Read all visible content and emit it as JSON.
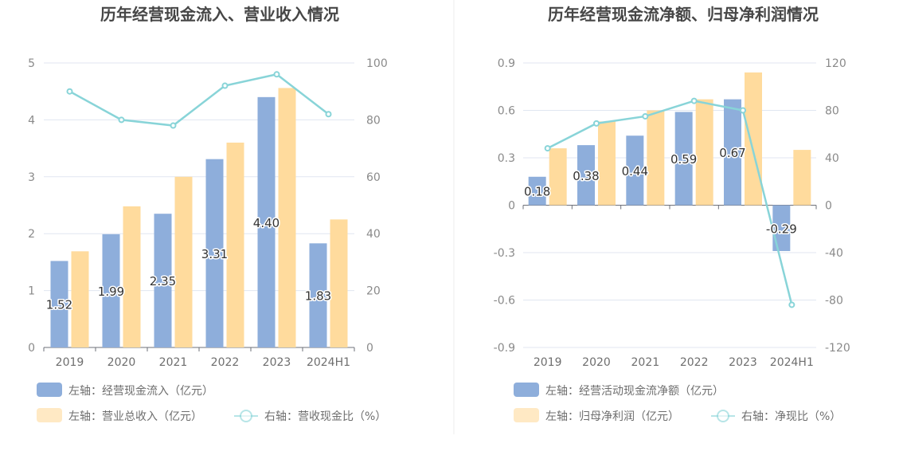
{
  "chart_data": [
    {
      "type": "bar",
      "title": "历年经营现金流入、营业收入情况",
      "categories": [
        "2019",
        "2020",
        "2021",
        "2022",
        "2023",
        "2024H1"
      ],
      "series": [
        {
          "name": "左轴：经营现金流入（亿元）",
          "type": "bar",
          "axis": "left",
          "color": "#8eaedb",
          "values": [
            1.52,
            1.99,
            2.35,
            3.31,
            4.4,
            1.83
          ],
          "labels": [
            "1.52",
            "1.99",
            "2.35",
            "3.31",
            "4.40",
            "1.83"
          ]
        },
        {
          "name": "左轴：营业总收入（亿元）",
          "type": "bar",
          "axis": "left",
          "color": "#ffdb9d",
          "values": [
            1.69,
            2.48,
            3.0,
            3.6,
            4.56,
            2.25
          ]
        },
        {
          "name": "右轴：营收现金比（%）",
          "type": "line",
          "axis": "right",
          "color": "#88d4d8",
          "values": [
            90,
            80,
            78,
            92,
            96,
            82
          ]
        }
      ],
      "left_axis": {
        "min": 0,
        "max": 5,
        "ticks": [
          "0",
          "1",
          "2",
          "3",
          "4",
          "5"
        ]
      },
      "right_axis": {
        "min": 0,
        "max": 100,
        "ticks": [
          "0",
          "20",
          "40",
          "60",
          "80",
          "100"
        ]
      },
      "grid": true,
      "legend_position": "bottom-left"
    },
    {
      "type": "bar",
      "title": "历年经营现金流净额、归母净利润情况",
      "categories": [
        "2019",
        "2020",
        "2021",
        "2022",
        "2023",
        "2024H1"
      ],
      "series": [
        {
          "name": "左轴：经营活动现金流净额（亿元）",
          "type": "bar",
          "axis": "left",
          "color": "#8eaedb",
          "values": [
            0.18,
            0.38,
            0.44,
            0.59,
            0.67,
            -0.29
          ],
          "labels": [
            "0.18",
            "0.38",
            "0.44",
            "0.59",
            "0.67",
            "-0.29"
          ]
        },
        {
          "name": "左轴：归母净利润（亿元）",
          "type": "bar",
          "axis": "left",
          "color": "#ffdb9d",
          "values": [
            0.36,
            0.53,
            0.6,
            0.67,
            0.84,
            0.35
          ]
        },
        {
          "name": "右轴：净现比（%）",
          "type": "line",
          "axis": "right",
          "color": "#88d4d8",
          "values": [
            48,
            69,
            75,
            88,
            80,
            -84
          ]
        }
      ],
      "left_axis": {
        "min": -0.9,
        "max": 0.9,
        "ticks": [
          "-0.9",
          "-0.6",
          "-0.3",
          "0",
          "0.3",
          "0.6",
          "0.9"
        ]
      },
      "right_axis": {
        "min": -120,
        "max": 120,
        "ticks": [
          "-120",
          "-80",
          "-40",
          "0",
          "40",
          "80",
          "120"
        ]
      },
      "grid": true,
      "legend_position": "bottom-left"
    }
  ]
}
